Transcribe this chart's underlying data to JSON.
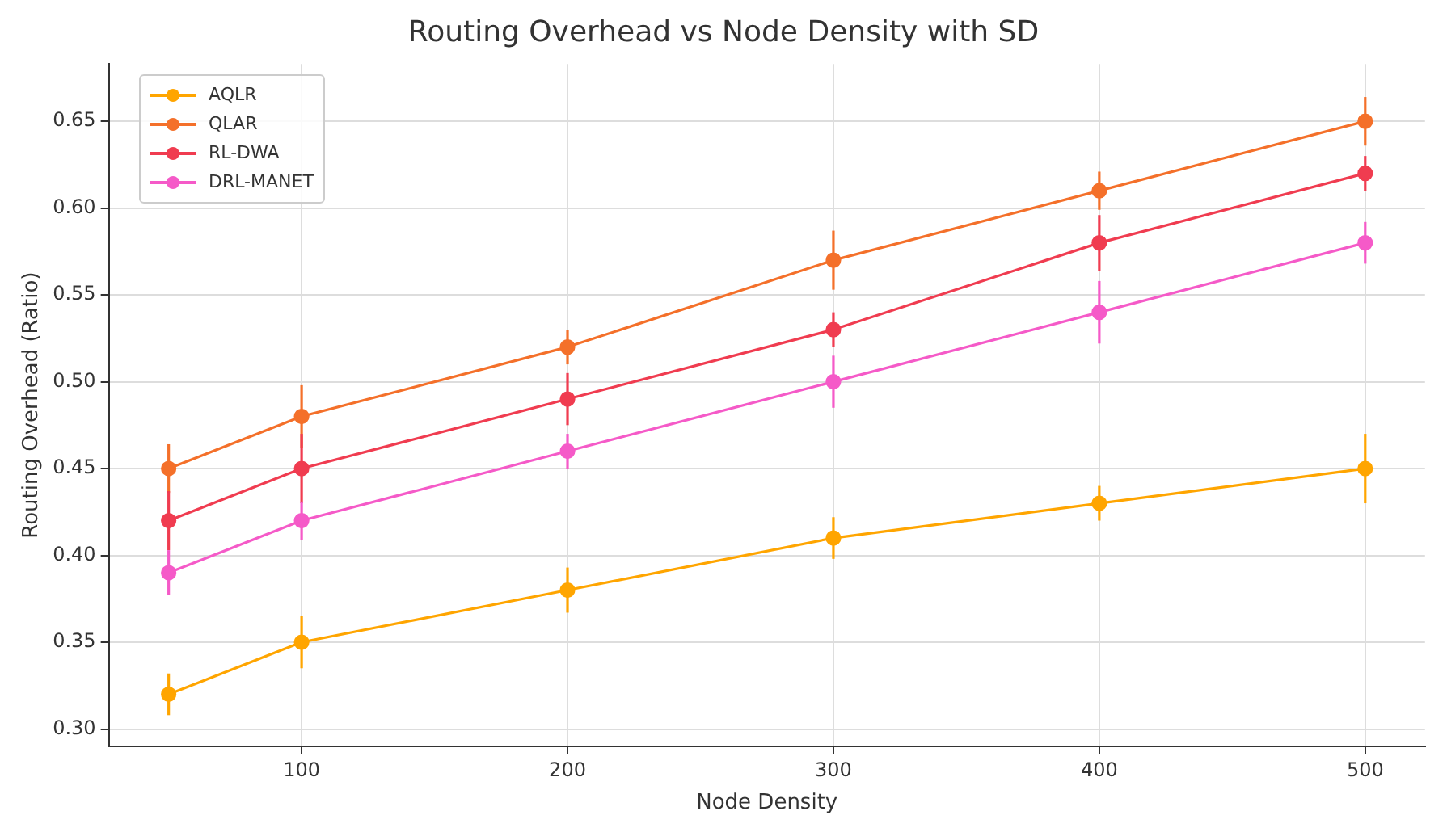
{
  "chart_data": {
    "type": "line",
    "title": "Routing Overhead vs Node Density with SD",
    "xlabel": "Node Density",
    "ylabel": "Routing Overhead (Ratio)",
    "x": [
      50,
      100,
      200,
      300,
      400,
      500
    ],
    "series": [
      {
        "name": "AQLR",
        "color": "#ffa500",
        "values": [
          0.32,
          0.35,
          0.38,
          0.41,
          0.43,
          0.45
        ],
        "errors": [
          0.012,
          0.015,
          0.013,
          0.012,
          0.01,
          0.02
        ]
      },
      {
        "name": "QLAR",
        "color": "#f4702a",
        "values": [
          0.45,
          0.48,
          0.52,
          0.57,
          0.61,
          0.65
        ],
        "errors": [
          0.014,
          0.018,
          0.01,
          0.017,
          0.011,
          0.014
        ]
      },
      {
        "name": "RL-DWA",
        "color": "#f03c50",
        "values": [
          0.42,
          0.45,
          0.49,
          0.53,
          0.58,
          0.62
        ],
        "errors": [
          0.017,
          0.02,
          0.015,
          0.01,
          0.016,
          0.01
        ]
      },
      {
        "name": "DRL-MANET",
        "color": "#f55ac8",
        "values": [
          0.39,
          0.42,
          0.46,
          0.5,
          0.54,
          0.58
        ],
        "errors": [
          0.013,
          0.011,
          0.01,
          0.015,
          0.018,
          0.012
        ]
      }
    ],
    "xlim": [
      27.5,
      522.5
    ],
    "xticks": [
      100,
      200,
      300,
      400,
      500
    ],
    "ylim": [
      0.29,
      0.683
    ],
    "yticks": [
      {
        "value": 0.3,
        "label": "0.30"
      },
      {
        "value": 0.35,
        "label": "0.35"
      },
      {
        "value": 0.4,
        "label": "0.40"
      },
      {
        "value": 0.45,
        "label": "0.45"
      },
      {
        "value": 0.5,
        "label": "0.50"
      },
      {
        "value": 0.55,
        "label": "0.55"
      },
      {
        "value": 0.6,
        "label": "0.60"
      },
      {
        "value": 0.65,
        "label": "0.65"
      }
    ],
    "grid": true,
    "legend": "top left",
    "marker": "circle",
    "line_style": "solid"
  }
}
